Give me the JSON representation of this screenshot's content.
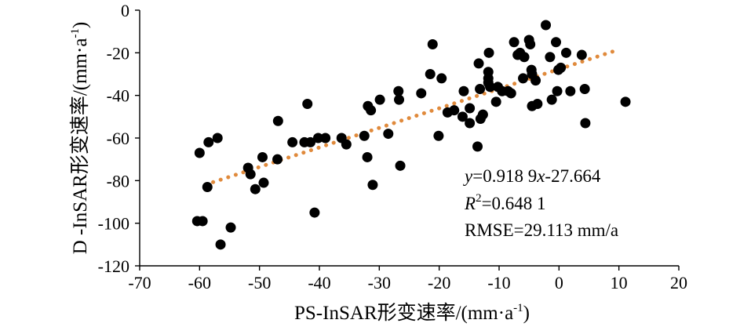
{
  "chart_data": {
    "type": "scatter",
    "title": "",
    "xlabel": {
      "main": "PS-InSAR形变速率/(mm·a",
      "sup": "-1",
      "close": ")"
    },
    "ylabel": {
      "main": "D -InSAR形变速率/(mm·a",
      "sup": "-1",
      "close": ")"
    },
    "xlim": [
      -70,
      20
    ],
    "ylim": [
      -120,
      0
    ],
    "xticks": [
      -70,
      -60,
      -50,
      -40,
      -30,
      -20,
      -10,
      0,
      10,
      20
    ],
    "yticks": [
      0,
      -20,
      -40,
      -60,
      -80,
      -100,
      -120
    ],
    "grid": false,
    "colors": {
      "points": "#000000",
      "trendline": "#e08a3c"
    },
    "points": [
      [
        -60.4,
        -99
      ],
      [
        -59.5,
        -99
      ],
      [
        -60,
        -67
      ],
      [
        -58.7,
        -83
      ],
      [
        -58.5,
        -62
      ],
      [
        -57,
        -60
      ],
      [
        -56.5,
        -110
      ],
      [
        -54.8,
        -102
      ],
      [
        -51.9,
        -74
      ],
      [
        -51.5,
        -77
      ],
      [
        -50.7,
        -84
      ],
      [
        -49.5,
        -69
      ],
      [
        -49.3,
        -81
      ],
      [
        -47,
        -70
      ],
      [
        -46.9,
        -52
      ],
      [
        -44.5,
        -62
      ],
      [
        -42.5,
        -62
      ],
      [
        -42,
        -44
      ],
      [
        -41.5,
        -62
      ],
      [
        -40.8,
        -95
      ],
      [
        -40.2,
        -60
      ],
      [
        -39,
        -60
      ],
      [
        -36.3,
        -60
      ],
      [
        -35.5,
        -63
      ],
      [
        -32.5,
        -59
      ],
      [
        -32,
        -69
      ],
      [
        -31.9,
        -45
      ],
      [
        -31.4,
        -47
      ],
      [
        -31.1,
        -82
      ],
      [
        -29.9,
        -42
      ],
      [
        -28.5,
        -58
      ],
      [
        -26.8,
        -38
      ],
      [
        -26.7,
        -42
      ],
      [
        -26.5,
        -73
      ],
      [
        -23,
        -39
      ],
      [
        -21.5,
        -30
      ],
      [
        -21.1,
        -16
      ],
      [
        -20.1,
        -59
      ],
      [
        -19.6,
        -32
      ],
      [
        -18.6,
        -48
      ],
      [
        -17.5,
        -47
      ],
      [
        -16.1,
        -50
      ],
      [
        -15.9,
        -38
      ],
      [
        -14.9,
        -46
      ],
      [
        -14.9,
        -53
      ],
      [
        -13.6,
        -64
      ],
      [
        -13.4,
        -25
      ],
      [
        -13.2,
        -37
      ],
      [
        -13.1,
        -51
      ],
      [
        -12.7,
        -49
      ],
      [
        -11.7,
        -20
      ],
      [
        -11.8,
        -29
      ],
      [
        -11.8,
        -32
      ],
      [
        -11.8,
        -34
      ],
      [
        -11.5,
        -36
      ],
      [
        -10.5,
        -43
      ],
      [
        -10.2,
        -36
      ],
      [
        -9.5,
        -38
      ],
      [
        -8.5,
        -38
      ],
      [
        -8,
        -39
      ],
      [
        -7.5,
        -15
      ],
      [
        -6.9,
        -21
      ],
      [
        -6.5,
        -20
      ],
      [
        -6,
        -32
      ],
      [
        -5.8,
        -22
      ],
      [
        -5,
        -14
      ],
      [
        -4.8,
        -16
      ],
      [
        -4.6,
        -28
      ],
      [
        -4.5,
        -30
      ],
      [
        -4.5,
        -45
      ],
      [
        -3.9,
        -33
      ],
      [
        -3.6,
        -44
      ],
      [
        -2.2,
        -7
      ],
      [
        -1.5,
        -22
      ],
      [
        -1.2,
        -42
      ],
      [
        -0.5,
        -15
      ],
      [
        -0.3,
        -38
      ],
      [
        -0.1,
        -28
      ],
      [
        0.3,
        -27
      ],
      [
        1.2,
        -20
      ],
      [
        1.9,
        -38
      ],
      [
        3.8,
        -21
      ],
      [
        4.3,
        -37
      ],
      [
        4.4,
        -53
      ],
      [
        11.1,
        -43
      ]
    ],
    "trendline": {
      "type": "linear",
      "slope": 0.9189,
      "intercept": -27.664,
      "x_range": [
        -59,
        9
      ]
    },
    "annotations": {
      "equation": {
        "y": "y",
        "rest": "=0.918 9",
        "x": "x",
        "tail": "-27.664"
      },
      "r2": {
        "r": "R",
        "sup": "2",
        "rest": "=0.648 1"
      },
      "rmse": "RMSE=29.113 mm/a"
    }
  }
}
